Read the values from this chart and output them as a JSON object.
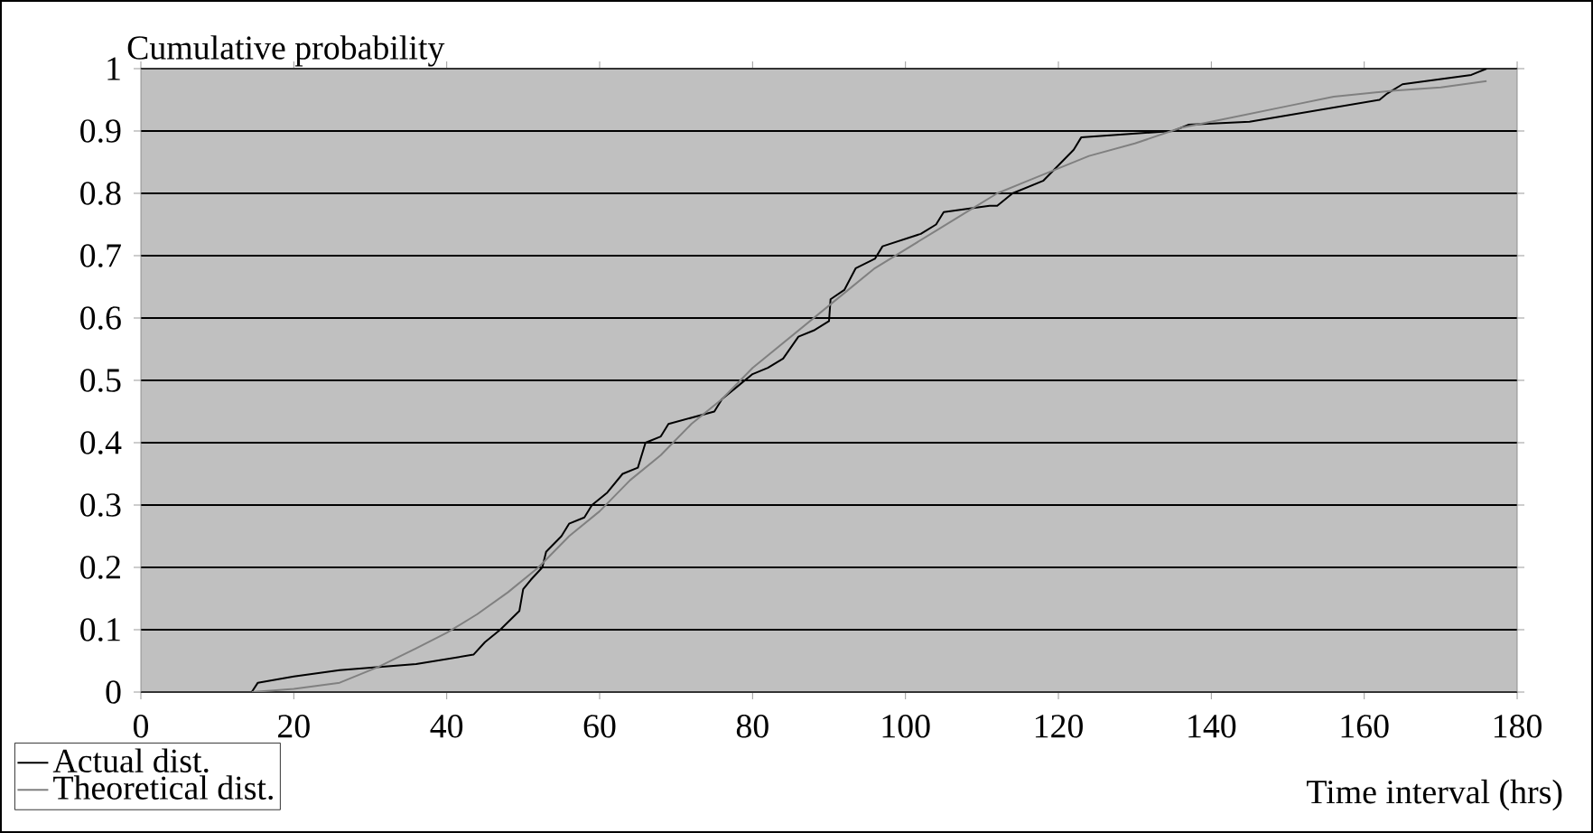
{
  "chart_data": {
    "type": "line",
    "ylabel": "Cumulative probability",
    "xlabel": "Time interval (hrs)",
    "xlim": [
      0,
      180
    ],
    "ylim": [
      0,
      1
    ],
    "xticks": [
      0,
      20,
      40,
      60,
      80,
      100,
      120,
      140,
      160,
      180
    ],
    "yticks": [
      0,
      0.1,
      0.2,
      0.3,
      0.4,
      0.5,
      0.6,
      0.7,
      0.8,
      0.9,
      1
    ],
    "grid": "y",
    "legend": "bottom left",
    "marker": "none",
    "line_style": "solid",
    "series": [
      {
        "name": "Actual dist.",
        "color": "#000000",
        "x": [
          14.5,
          15.3,
          20,
          26,
          36,
          43.5,
          45,
          47,
          49.5,
          50,
          51,
          52.5,
          53,
          55,
          56,
          58,
          59,
          61,
          63,
          65,
          66,
          68,
          69,
          75,
          76,
          78,
          80,
          82,
          84,
          86,
          88,
          90,
          90.2,
          92,
          93.5,
          96,
          97,
          102,
          104,
          105,
          111,
          112,
          114,
          118,
          120,
          122,
          123,
          135,
          137,
          145,
          162,
          163,
          165,
          174,
          176
        ],
        "values": [
          0,
          0.015,
          0.025,
          0.035,
          0.045,
          0.06,
          0.08,
          0.1,
          0.13,
          0.165,
          0.18,
          0.2,
          0.225,
          0.25,
          0.27,
          0.28,
          0.3,
          0.32,
          0.35,
          0.36,
          0.4,
          0.41,
          0.43,
          0.45,
          0.47,
          0.49,
          0.51,
          0.52,
          0.535,
          0.57,
          0.58,
          0.595,
          0.63,
          0.645,
          0.68,
          0.695,
          0.715,
          0.735,
          0.75,
          0.77,
          0.78,
          0.78,
          0.8,
          0.82,
          0.845,
          0.87,
          0.89,
          0.9,
          0.91,
          0.915,
          0.95,
          0.96,
          0.975,
          0.99,
          1.0
        ]
      },
      {
        "name": "Theoretical dist.",
        "color": "#808080",
        "x": [
          14.5,
          20,
          26,
          31,
          36,
          40,
          44,
          48,
          52,
          56,
          60,
          64,
          68,
          72,
          76,
          80,
          84,
          88,
          92,
          96,
          100,
          104,
          108,
          112,
          116,
          120,
          124,
          130,
          136,
          142,
          150,
          156,
          164,
          170,
          176
        ],
        "values": [
          0,
          0.005,
          0.015,
          0.04,
          0.07,
          0.095,
          0.125,
          0.16,
          0.2,
          0.25,
          0.29,
          0.34,
          0.38,
          0.43,
          0.47,
          0.52,
          0.56,
          0.6,
          0.64,
          0.68,
          0.71,
          0.74,
          0.77,
          0.8,
          0.82,
          0.84,
          0.86,
          0.88,
          0.905,
          0.92,
          0.94,
          0.955,
          0.965,
          0.97,
          0.98
        ]
      }
    ]
  }
}
